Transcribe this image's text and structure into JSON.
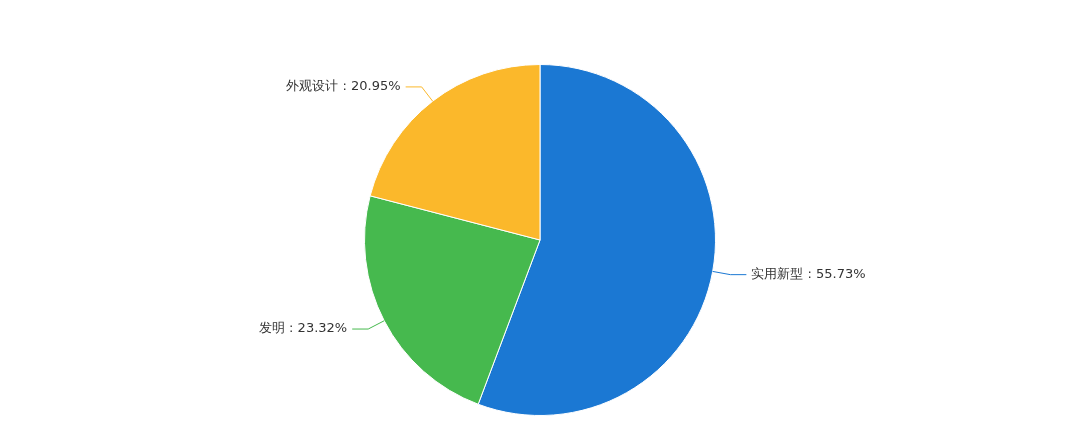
{
  "chart_data": {
    "type": "pie",
    "categories": [
      "实用新型",
      "发明",
      "外观设计"
    ],
    "values": [
      55.73,
      23.32,
      20.95
    ],
    "value_labels": [
      ": 55.73%",
      ": 23.32%",
      ": 20.95%"
    ],
    "colors": [
      "#1b78d3",
      "#46b94e",
      "#fbb82b"
    ],
    "legend": false
  }
}
